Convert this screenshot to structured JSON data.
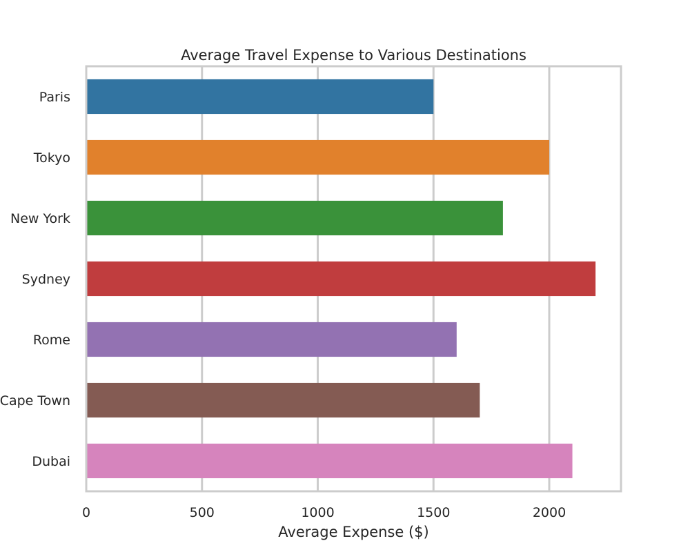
{
  "chart_data": {
    "type": "bar",
    "orientation": "horizontal",
    "title": "Average Travel Expense to Various Destinations",
    "xlabel": "Average Expense ($)",
    "ylabel": "",
    "categories": [
      "Paris",
      "Tokyo",
      "New York",
      "Sydney",
      "Rome",
      "Cape Town",
      "Dubai"
    ],
    "values": [
      1500,
      2000,
      1800,
      2200,
      1600,
      1700,
      2100
    ],
    "colors": [
      "#3274a1",
      "#e1812c",
      "#3a923a",
      "#c03d3e",
      "#9372b2",
      "#845b53",
      "#d684bd"
    ],
    "xlim": [
      0,
      2310
    ],
    "xticks": [
      0,
      500,
      1000,
      1500,
      2000
    ],
    "xtick_labels": [
      "0",
      "500",
      "1000",
      "1500",
      "2000"
    ],
    "grid": "x",
    "grid_color": "#cccccc",
    "spine_color": "#cccccc",
    "text_color": "#262626"
  }
}
